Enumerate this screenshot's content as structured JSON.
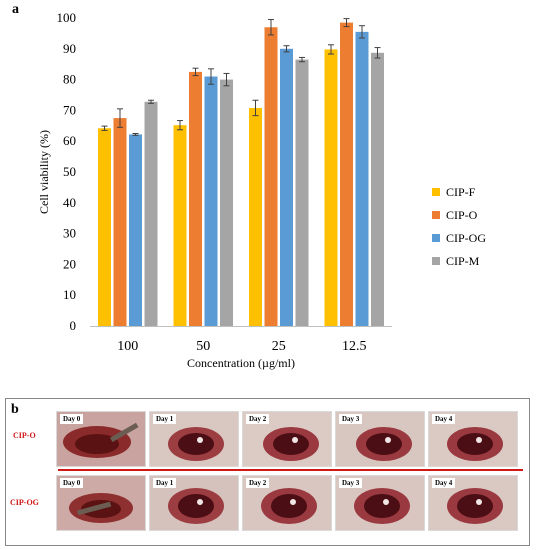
{
  "panel_a_letter": "a",
  "panel_b_letter": "b",
  "chart_data": {
    "type": "bar",
    "title": "",
    "xlabel": "Concentration  (µg/ml)",
    "ylabel": "Cell viability  (%)",
    "ylim": [
      0,
      100
    ],
    "yticks": [
      0,
      10,
      20,
      30,
      40,
      50,
      60,
      70,
      80,
      90,
      100
    ],
    "categories": [
      "100",
      "50",
      "25",
      "12.5"
    ],
    "legend_position": "right",
    "error_bars": true,
    "series": [
      {
        "name": "CIP-F",
        "color": "#FFC000",
        "values": [
          64.2,
          65.2,
          70.8,
          89.8
        ],
        "errors": [
          0.7,
          1.5,
          2.5,
          1.5
        ]
      },
      {
        "name": "CIP-O",
        "color": "#ED7D31",
        "values": [
          67.5,
          82.5,
          97.0,
          98.5
        ],
        "errors": [
          3.0,
          1.2,
          2.5,
          1.3
        ]
      },
      {
        "name": "CIP-OG",
        "color": "#5B9BD5",
        "values": [
          62.2,
          81.0,
          90.0,
          95.5
        ],
        "errors": [
          0.3,
          2.5,
          1.0,
          2.0
        ]
      },
      {
        "name": "CIP-M",
        "color": "#A5A5A5",
        "values": [
          72.8,
          80.0,
          86.5,
          88.7
        ],
        "errors": [
          0.5,
          2.0,
          0.7,
          1.7
        ]
      }
    ]
  },
  "panel_b": {
    "rows": [
      {
        "label": "CIP-O",
        "days": [
          "Day 0",
          "Day 1",
          "Day 2",
          "Day 3",
          "Day 4"
        ]
      },
      {
        "label": "CIP-OG",
        "days": [
          "Day 0",
          "Day 1",
          "Day 2",
          "Day 3",
          "Day 4"
        ]
      }
    ],
    "divider_color": "#D01818"
  }
}
